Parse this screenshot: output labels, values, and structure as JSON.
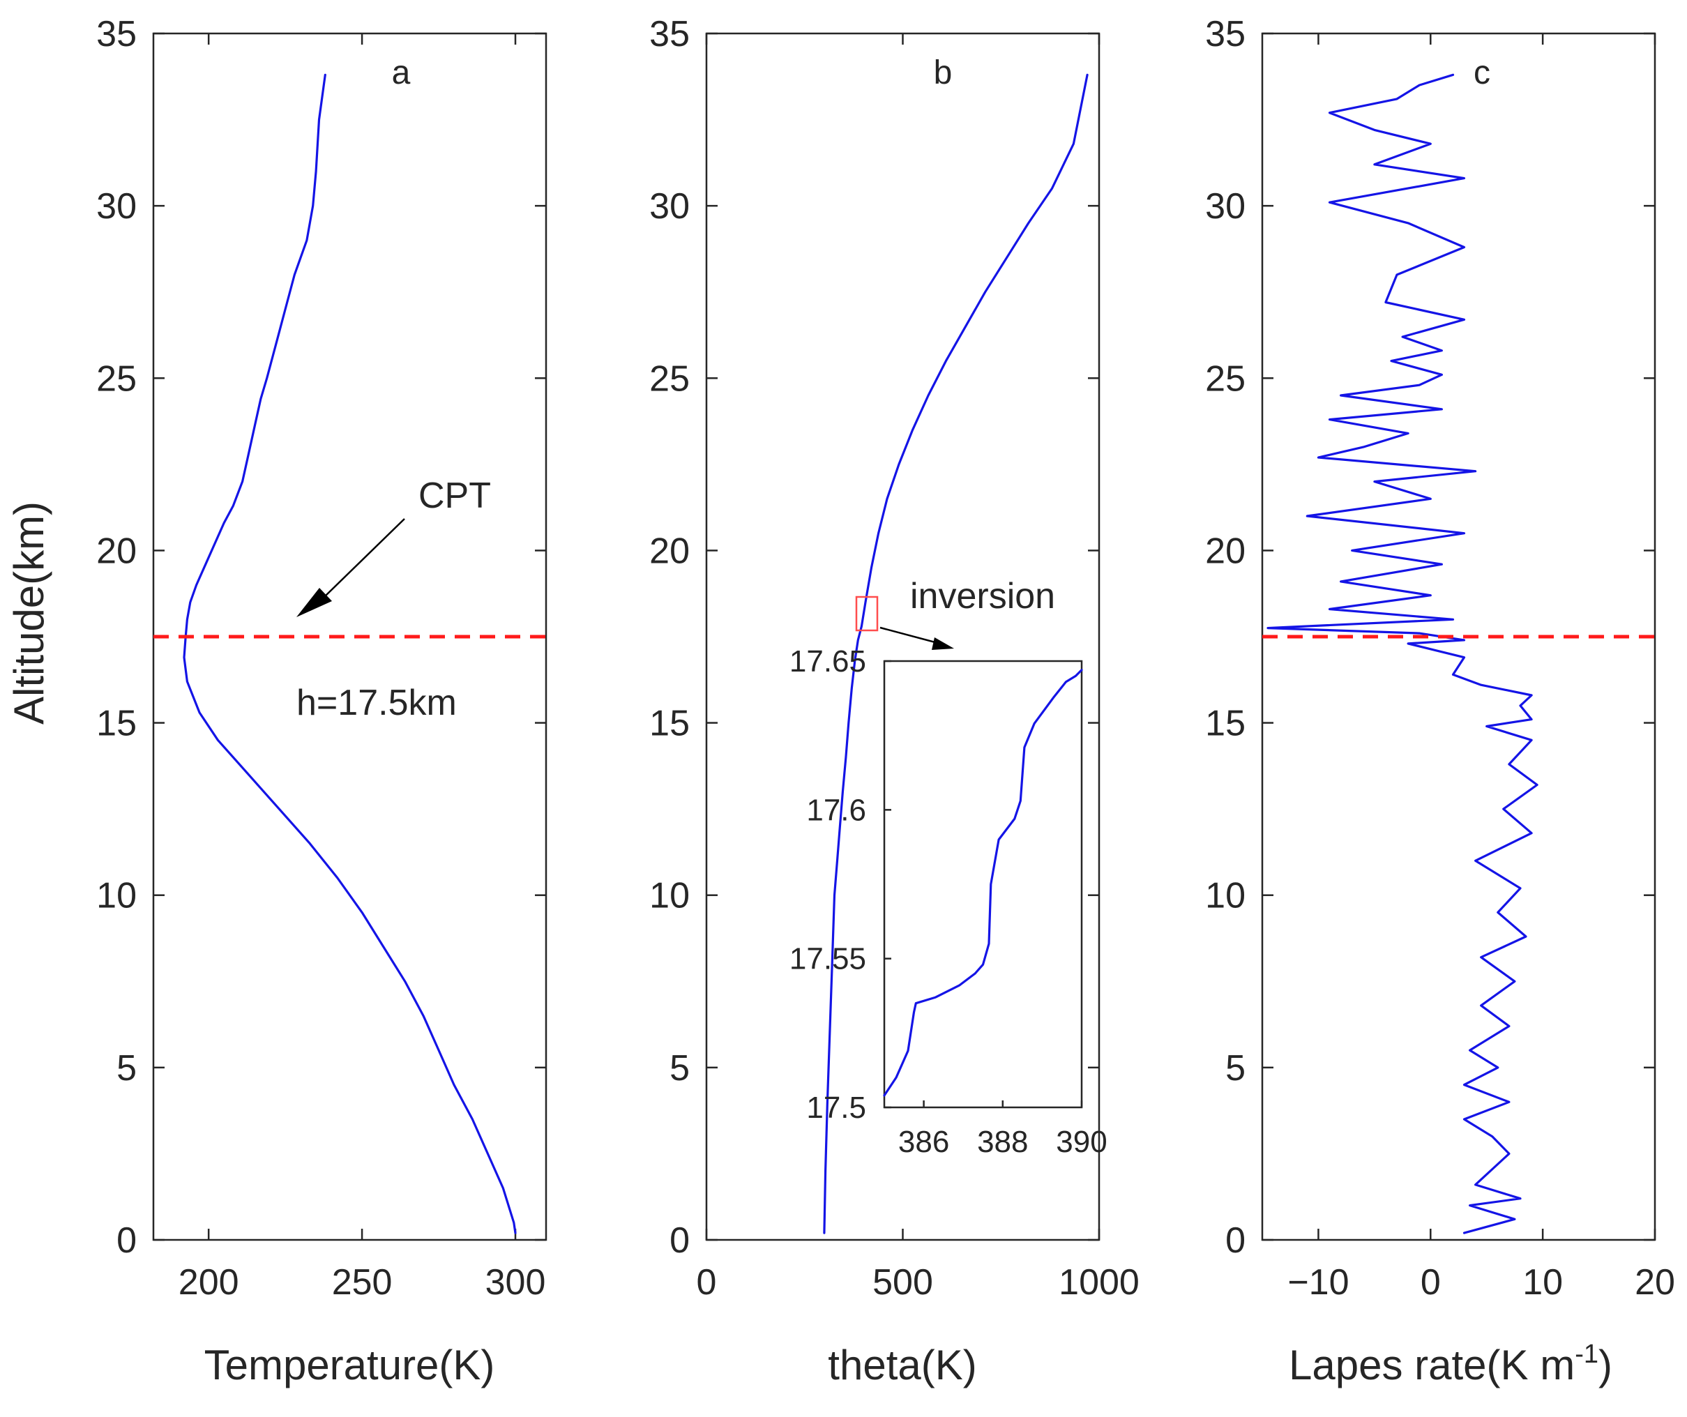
{
  "chart_data": [
    {
      "type": "line",
      "panel": "a",
      "xlabel": "Temperature(K)",
      "ylabel": "Altitude(km)",
      "xlim": [
        182,
        310
      ],
      "ylim": [
        0,
        35
      ],
      "xticks": [
        200,
        250,
        300
      ],
      "yticks": [
        0,
        5,
        10,
        15,
        20,
        25,
        30,
        35
      ],
      "series": [
        {
          "name": "temperature",
          "x": [
            300,
            299.5,
            296,
            291,
            286,
            280,
            275,
            270,
            264,
            257,
            250,
            242,
            233,
            223,
            213,
            203,
            197,
            193,
            192,
            192.5,
            193,
            194,
            196,
            199,
            202,
            205,
            208,
            211,
            213,
            215,
            217,
            219,
            222,
            225,
            228,
            232,
            234,
            235,
            236,
            238
          ],
          "y": [
            0.2,
            0.5,
            1.5,
            2.5,
            3.5,
            4.5,
            5.5,
            6.5,
            7.5,
            8.5,
            9.5,
            10.5,
            11.5,
            12.5,
            13.5,
            14.5,
            15.3,
            16.2,
            16.9,
            17.5,
            18.0,
            18.5,
            19.0,
            19.6,
            20.2,
            20.8,
            21.3,
            22.0,
            22.8,
            23.6,
            24.4,
            25.0,
            26.0,
            27.0,
            28.0,
            29.0,
            30.0,
            31.0,
            32.5,
            33.8
          ]
        }
      ],
      "reference_line": {
        "y": 17.5,
        "style": "dashed",
        "color": "#ff1a1a"
      },
      "annotations": [
        "CPT",
        "h=17.5km"
      ]
    },
    {
      "type": "line",
      "panel": "b",
      "xlabel": "theta(K)",
      "xlim": [
        0,
        1000
      ],
      "ylim": [
        0,
        35
      ],
      "xticks": [
        0,
        500,
        1000
      ],
      "yticks": [
        0,
        5,
        10,
        15,
        20,
        25,
        30,
        35
      ],
      "series": [
        {
          "name": "theta",
          "x": [
            300,
            303,
            308,
            314,
            320,
            326,
            333,
            340,
            347,
            355,
            362,
            370,
            378,
            386,
            395,
            405,
            420,
            438,
            460,
            490,
            525,
            565,
            610,
            660,
            710,
            765,
            820,
            880,
            935,
            970
          ],
          "y": [
            0.2,
            2,
            4,
            6,
            8,
            10,
            11,
            12,
            13,
            14,
            15,
            16,
            16.8,
            17.4,
            17.8,
            18.5,
            19.5,
            20.5,
            21.5,
            22.5,
            23.5,
            24.5,
            25.5,
            26.5,
            27.5,
            28.5,
            29.5,
            30.5,
            31.8,
            33.8
          ]
        }
      ],
      "annotations": [
        "inversion"
      ],
      "inset": {
        "xlim": [
          385,
          390
        ],
        "ylim": [
          17.5,
          17.65
        ],
        "xticks": [
          386,
          388,
          390
        ],
        "yticks": [
          17.5,
          17.55,
          17.6,
          17.65
        ],
        "x": [
          385,
          385.3,
          385.6,
          385.75,
          385.8,
          386.3,
          386.9,
          387.3,
          387.5,
          387.65,
          387.7,
          387.9,
          388.3,
          388.45,
          388.55,
          388.8,
          389.3,
          389.6,
          389.85,
          390
        ],
        "y": [
          17.504,
          17.51,
          17.519,
          17.532,
          17.535,
          17.537,
          17.541,
          17.545,
          17.548,
          17.555,
          17.575,
          17.59,
          17.597,
          17.603,
          17.621,
          17.629,
          17.638,
          17.643,
          17.645,
          17.647
        ]
      }
    },
    {
      "type": "line",
      "panel": "c",
      "xlabel": "Lapes rate(K m⁻¹)",
      "xlim": [
        -15,
        20
      ],
      "ylim": [
        0,
        35
      ],
      "xticks": [
        -10,
        0,
        10,
        20
      ],
      "yticks": [
        0,
        5,
        10,
        15,
        20,
        25,
        30,
        35
      ],
      "series": [
        {
          "name": "lapse rate",
          "x": [
            3,
            7.5,
            3.5,
            8,
            4,
            7,
            5.5,
            3,
            7,
            3,
            6,
            3.5,
            7,
            4.5,
            7.5,
            4.5,
            8.5,
            6,
            8,
            4,
            9,
            6.5,
            9.5,
            7,
            9,
            5,
            9,
            8,
            9,
            4.5,
            2,
            3,
            0.5,
            -2,
            3,
            -1,
            -14.5,
            2,
            -9,
            0,
            -8,
            1,
            -7,
            3,
            -11,
            0,
            -5,
            4,
            -10,
            -6,
            -2,
            -9,
            1,
            -8,
            -1,
            1,
            -3.5,
            1,
            -2.5,
            3,
            -4,
            -3,
            3,
            -2,
            -9,
            3,
            -5,
            0,
            -5,
            -9,
            -3,
            -1,
            2
          ],
          "y": [
            0.2,
            0.6,
            1.0,
            1.2,
            1.6,
            2.5,
            3.0,
            3.5,
            4.0,
            4.5,
            5.0,
            5.5,
            6.2,
            6.8,
            7.5,
            8.2,
            8.8,
            9.5,
            10.2,
            11.0,
            11.8,
            12.5,
            13.2,
            13.8,
            14.5,
            14.9,
            15.1,
            15.5,
            15.8,
            16.1,
            16.4,
            16.9,
            17.1,
            17.3,
            17.4,
            17.6,
            17.75,
            18.0,
            18.3,
            18.7,
            19.1,
            19.6,
            20.0,
            20.5,
            21.0,
            21.5,
            22.0,
            22.3,
            22.7,
            23.0,
            23.4,
            23.8,
            24.1,
            24.5,
            24.8,
            25.1,
            25.5,
            25.8,
            26.2,
            26.7,
            27.2,
            28.0,
            28.8,
            29.5,
            30.1,
            30.8,
            31.2,
            31.8,
            32.2,
            32.7,
            33.1,
            33.5,
            33.8
          ]
        }
      ],
      "reference_line": {
        "y": 17.5,
        "style": "dashed",
        "color": "#ff1a1a"
      }
    }
  ],
  "labels": {
    "panel_a": "a",
    "panel_b": "b",
    "panel_c": "c",
    "ylabel": "Altitude(km)",
    "xlabel_a": "Temperature(K)",
    "xlabel_b": "theta(K)",
    "xlabel_c_main": "Lapes rate(K m",
    "xlabel_c_sup": "-1",
    "xlabel_c_end": ")",
    "cpt": "CPT",
    "height": "h=17.5km",
    "inversion": "inversion"
  },
  "colors": {
    "curve": "#1414e6",
    "reference": "#ff1a1a",
    "box": "#ff4d4d"
  }
}
